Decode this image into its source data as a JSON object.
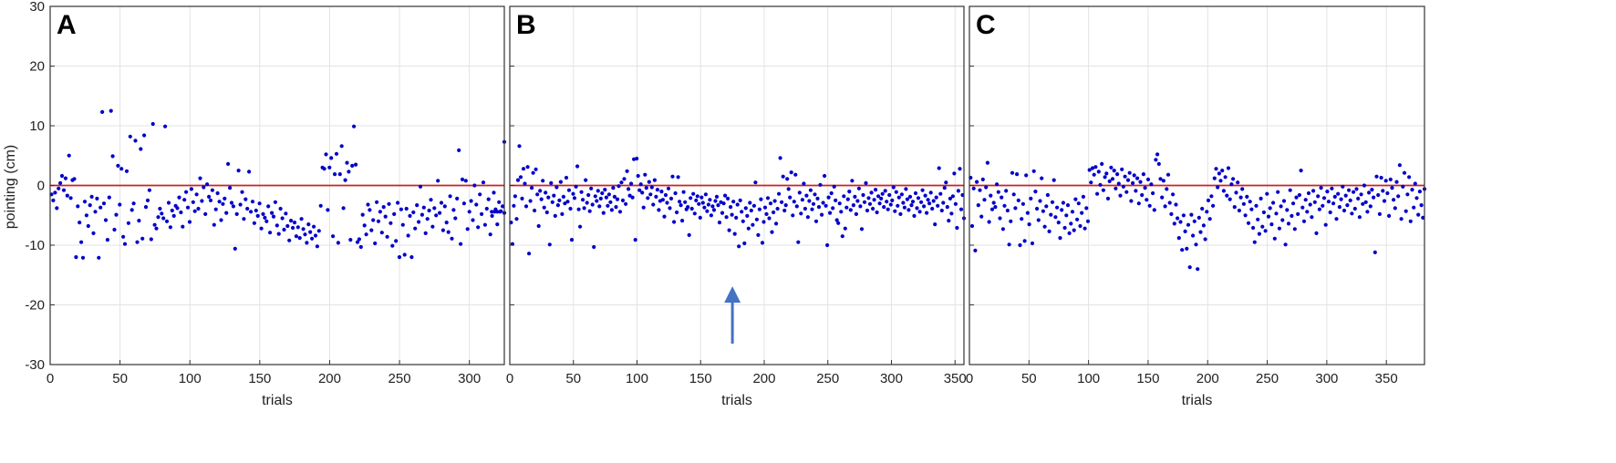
{
  "figure": {
    "shared_ylabel": "pointing (cm)",
    "ylim": [
      -30,
      30
    ],
    "y_ticks": [
      -30,
      -20,
      -10,
      0,
      10,
      20,
      30
    ],
    "reference_line_y": 0,
    "colors": {
      "points": "#0000cc",
      "reference_line": "#cc2222",
      "grid": "#e3e3e3",
      "frame": "#333333",
      "arrow": "#4472c4"
    }
  },
  "chart_data": [
    {
      "type": "scatter",
      "panel_label": "A",
      "xlabel": "trials",
      "ylabel": "pointing (cm)",
      "xlim": [
        0,
        325
      ],
      "ylim": [
        -30,
        30
      ],
      "x_ticks": [
        0,
        50,
        100,
        150,
        200,
        250,
        300
      ],
      "grid": true,
      "series": [
        {
          "y": [
            -1.5,
            -2.5,
            -1.2,
            -3.8,
            -0.5,
            0.4,
            1.6,
            -0.8,
            1.2,
            -1.7,
            5.0,
            -2.1,
            0.9,
            1.1,
            -12.0,
            -3.5,
            -6.2,
            -9.5,
            -12.1,
            -2.7,
            -5.0,
            -6.8,
            -3.3,
            -1.9,
            -8.0,
            -4.4,
            -2.2,
            -12.1,
            -3.7,
            12.3,
            -3.0,
            -5.8,
            -9.1,
            -2.0,
            12.5,
            4.9,
            -7.4,
            -4.9,
            3.3,
            -3.2,
            2.8,
            -8.6,
            -9.8,
            2.4,
            -6.3,
            8.2,
            -4.1,
            -3.0,
            7.5,
            -9.5,
            -5.9,
            6.1,
            -8.9,
            8.4,
            -3.6,
            -2.5,
            -0.8,
            -9.0,
            10.3,
            -6.6,
            -7.2,
            -5.3,
            -3.9,
            -4.7,
            -5.5,
            9.9,
            -6.0,
            -2.9,
            -7.0,
            -4.2,
            -5.1,
            -3.4,
            -3.8,
            -2.0,
            -4.5,
            -6.9,
            -2.4,
            -1.1,
            -3.7,
            -6.1,
            -0.6,
            -2.8,
            -4.3,
            -1.5,
            -3.9,
            1.2,
            -2.6,
            -0.3,
            -4.8,
            0.2,
            -1.9,
            -2.5,
            -0.8,
            -6.6,
            -4.0,
            -1.3,
            -2.7,
            -5.8,
            -3.1,
            -2.2,
            -4.6,
            3.6,
            -0.4,
            -2.9,
            -3.5,
            -10.6,
            -4.8,
            2.5,
            -3.2,
            -1.1,
            -5.6,
            -2.3,
            -3.9,
            2.3,
            -4.4,
            -2.7,
            -6.3,
            -4.2,
            -5.1,
            -3.0,
            -7.2,
            -4.8,
            -5.4,
            -6.0,
            -3.5,
            -7.9,
            -4.6,
            -5.2,
            -2.8,
            -6.7,
            -8.1,
            -3.9,
            -5.5,
            -7.4,
            -4.7,
            -6.8,
            -9.2,
            -5.9,
            -7.1,
            -6.2,
            -8.5,
            -7.0,
            -8.8,
            -5.6,
            -7.3,
            -8.2,
            -9.6,
            -6.5,
            -7.8,
            -8.9,
            -6.9,
            -8.4,
            -10.2,
            -7.6,
            -3.4,
            3.0,
            2.8,
            5.2,
            -4.1,
            3.0,
            4.6,
            -8.5,
            1.9,
            5.3,
            -9.6,
            1.9,
            6.6,
            -3.8,
            0.9,
            3.8,
            2.3,
            -9.1,
            3.3,
            9.9,
            3.5,
            -9.5,
            -9.0,
            -10.3,
            -4.9,
            -6.7,
            -8.2,
            -3.2,
            -4.1,
            -7.5,
            -5.8,
            -9.7,
            -2.8,
            -6.0,
            -4.4,
            -7.9,
            -3.6,
            -5.2,
            -8.6,
            -3.1,
            -6.3,
            -10.1,
            -4.8,
            -9.3,
            -2.9,
            -12.0,
            -4.0,
            -6.6,
            -11.6,
            -3.9,
            -8.4,
            -5.1,
            -12.0,
            -4.5,
            -7.2,
            -3.3,
            -6.1,
            -0.2,
            -4.9,
            -3.7,
            -8.0,
            -5.6,
            -4.2,
            -2.4,
            -6.9,
            -3.8,
            -5.0,
            0.8,
            -4.6,
            -2.9,
            -7.5,
            -3.5,
            -6.2,
            -7.8,
            -1.8,
            -8.9,
            -4.1,
            -5.5,
            -2.2,
            5.9,
            -9.8,
            1.0,
            -3.0,
            0.8,
            -7.3,
            -4.4,
            -2.6,
            -5.8,
            0.0,
            -3.2,
            -7.0,
            -1.5,
            -4.8,
            0.5,
            -6.6,
            -3.9,
            -2.3,
            -8.2,
            -5.1,
            -1.2,
            -4.0,
            -6.5,
            -2.8,
            -4.3,
            -3.5,
            -4.6
          ],
          "x_range": [
            1,
            325
          ],
          "extra_points": [
            [
              325,
              7.3
            ],
            [
              316,
              -4.4
            ],
            [
              318,
              -4.4
            ],
            [
              320,
              -4.4
            ],
            [
              322,
              -4.4
            ]
          ]
        }
      ]
    },
    {
      "type": "scatter",
      "panel_label": "B",
      "xlabel": "trials",
      "ylabel": "",
      "xlim": [
        0,
        357
      ],
      "ylim": [
        -30,
        30
      ],
      "x_ticks": [
        0,
        50,
        100,
        150,
        200,
        250,
        300,
        350
      ],
      "grid": true,
      "annotation": {
        "type": "arrow",
        "x": 175,
        "y_from": -26.5,
        "y_to": -17.5
      },
      "series": [
        {
          "y": [
            -6.2,
            -9.8,
            -3.4,
            -1.8,
            -5.6,
            0.9,
            6.6,
            1.4,
            -2.2,
            2.8,
            0.3,
            -3.5,
            3.1,
            -11.4,
            -2.6,
            -0.4,
            2.1,
            -4.2,
            2.7,
            -1.5,
            -6.8,
            -0.9,
            -2.3,
            0.8,
            -3.7,
            -1.2,
            -4.5,
            -2.0,
            -9.9,
            0.4,
            -2.8,
            -1.7,
            -5.1,
            -0.3,
            -3.3,
            -2.5,
            0.6,
            -4.8,
            -1.9,
            -3.0,
            1.3,
            -2.7,
            -0.8,
            -3.9,
            -9.1,
            -1.4,
            -2.1,
            -0.2,
            3.2,
            -4.0,
            -6.9,
            -1.1,
            -2.4,
            -3.8,
            0.9,
            -2.9,
            -1.6,
            -4.3,
            -0.5,
            -3.2,
            -10.3,
            -1.8,
            -2.6,
            -0.9,
            -3.5,
            -2.2,
            -1.3,
            -4.6,
            -0.7,
            -2.0,
            -3.4,
            -1.5,
            -2.8,
            -4.1,
            -0.4,
            -1.9,
            -3.6,
            -2.3,
            -0.1,
            -4.4,
            0.5,
            -2.5,
            1.1,
            -3.1,
            2.4,
            -0.6,
            -1.7,
            0.3,
            -2.0,
            4.4,
            -9.1,
            4.5,
            1.6,
            -0.8,
            0.2,
            -1.2,
            -3.7,
            1.8,
            -0.4,
            -2.1,
            0.6,
            -1.5,
            -0.3,
            -3.2,
            0.9,
            -1.9,
            -0.7,
            -4.1,
            -2.6,
            -1.0,
            -2.4,
            -5.2,
            -1.6,
            -2.9,
            -0.5,
            -3.8,
            -2.2,
            1.5,
            -6.1,
            -1.3,
            -4.5,
            1.4,
            -2.7,
            -3.3,
            -5.9,
            -1.1,
            -2.8,
            -4.0,
            -3.6,
            -8.3,
            -2.1,
            -3.9,
            -1.4,
            -4.7,
            -2.5,
            -1.8,
            -3.1,
            -5.4,
            -2.0,
            -2.9,
            -3.7,
            -1.5,
            -4.3,
            -3.2,
            -2.4,
            -5.0,
            -3.5,
            -4.1,
            -2.6,
            -1.9,
            -3.3,
            -6.2,
            -2.8,
            -4.6,
            -3.0,
            -1.7,
            -5.3,
            -2.2,
            -7.5,
            -3.6,
            -4.9,
            -2.7,
            -8.1,
            -5.4,
            -3.2,
            -10.2,
            -2.5,
            -4.4,
            -6.0,
            -9.7,
            -3.8,
            -5.1,
            -7.2,
            -2.9,
            -4.2,
            -6.6,
            -3.4,
            0.5,
            -5.7,
            -8.3,
            -4.0,
            -2.3,
            -9.6,
            -6.1,
            -3.7,
            -4.8,
            -2.1,
            -5.5,
            -3.0,
            -7.8,
            -4.5,
            -2.6,
            -6.4,
            -3.9,
            -1.4,
            4.6,
            -2.8,
            1.5,
            -4.2,
            -3.3,
            1.1,
            -0.6,
            -2.0,
            2.2,
            -5.0,
            -2.7,
            1.8,
            -3.5,
            -9.5,
            -1.2,
            -4.7,
            -2.4,
            0.3,
            -3.9,
            -1.7,
            -5.3,
            -2.6,
            -0.8,
            -4.0,
            -3.1,
            -1.5,
            -6.0,
            -2.2,
            -3.6,
            0.1,
            -4.9,
            -2.9,
            1.6,
            -3.4,
            -10.0,
            -2.0,
            -4.6,
            -1.3,
            -3.8,
            -0.2,
            -2.5,
            -5.8,
            -6.3,
            -3.0,
            -4.4,
            -8.5,
            -1.8,
            -7.2,
            -3.7,
            -2.3,
            -1.0,
            -4.1,
            0.8,
            -3.3,
            -1.9,
            -4.8,
            -2.6,
            -0.5,
            -3.5,
            -7.3,
            -1.6,
            -2.8,
            0.4,
            -4.2,
            -2.1,
            -3.1,
            -1.2,
            -3.9,
            -2.4,
            -0.7,
            -4.5,
            -1.8,
            -3.0,
            -2.2,
            -1.4,
            -3.6,
            -0.9,
            -2.7,
            -4.0,
            -1.6,
            -3.2,
            -2.5,
            -0.3,
            -4.3,
            -1.1,
            -3.4,
            -2.0,
            -4.8,
            -1.5,
            -2.9,
            -3.7,
            -0.6,
            -2.3,
            -4.1,
            -1.9,
            -3.3,
            -2.7,
            -5.1,
            -1.3,
            -3.8,
            -2.1,
            -4.4,
            -2.8,
            -0.8,
            -3.5,
            -1.7,
            -4.6,
            -2.4,
            -3.0,
            -1.2,
            -3.9,
            -2.6,
            -6.5,
            -2.0,
            -3.4,
            2.9,
            -1.4,
            -4.2,
            -2.9,
            -0.4,
            0.5,
            -3.6,
            -5.9,
            -2.2,
            -4.7,
            -1.8,
            2.0,
            -3.1,
            -7.1,
            -0.9,
            2.8,
            -4.0,
            -1.6,
            -5.5
          ]
        }
      ]
    },
    {
      "type": "scatter",
      "panel_label": "C",
      "xlabel": "trials",
      "ylabel": "",
      "xlim": [
        0,
        382
      ],
      "ylim": [
        -30,
        30
      ],
      "x_ticks": [
        0,
        50,
        100,
        150,
        200,
        250,
        300,
        350
      ],
      "grid": true,
      "series": [
        {
          "y": [
            1.3,
            -6.8,
            -0.5,
            -10.9,
            0.6,
            -3.3,
            -0.8,
            -5.2,
            1.0,
            -2.4,
            -0.3,
            3.8,
            -6.1,
            -1.7,
            -4.0,
            -2.9,
            -3.6,
            0.2,
            -1.1,
            -5.5,
            -2.0,
            -7.3,
            -3.4,
            -0.9,
            -4.2,
            -9.9,
            -6.0,
            2.1,
            -1.5,
            -3.8,
            1.9,
            -2.5,
            -10.0,
            -5.6,
            -3.1,
            -9.3,
            1.7,
            -4.6,
            -6.5,
            -2.2,
            -9.7,
            2.4,
            -1.0,
            -3.9,
            -5.8,
            -2.6,
            1.2,
            -4.3,
            -6.9,
            -3.5,
            -1.6,
            -7.7,
            -4.9,
            -2.8,
            0.9,
            -5.3,
            -3.7,
            -6.2,
            -8.8,
            -4.1,
            -2.9,
            -7.1,
            -5.0,
            -3.3,
            -8.0,
            -6.4,
            -4.4,
            -7.5,
            -2.3,
            -5.7,
            -3.0,
            -6.8,
            -4.6,
            -1.9,
            -7.2,
            -3.8,
            -6.0,
            2.6,
            0.5,
            2.9,
            1.8,
            3.1,
            -1.4,
            2.3,
            0.1,
            3.6,
            -0.8,
            1.4,
            2.0,
            -2.2,
            0.7,
            3.0,
            1.1,
            2.5,
            -0.5,
            1.9,
            0.3,
            -1.7,
            2.7,
            -0.2,
            1.5,
            -1.1,
            0.9,
            2.1,
            -2.6,
            0.4,
            1.7,
            -0.9,
            1.2,
            -3.0,
            0.6,
            -1.6,
            1.9,
            -0.4,
            -2.4,
            1.0,
            -3.4,
            0.2,
            -1.3,
            -4.1,
            4.3,
            5.2,
            3.6,
            1.1,
            -2.0,
            0.8,
            -3.5,
            -0.6,
            1.8,
            -2.9,
            -4.8,
            -1.5,
            -6.4,
            -3.2,
            -5.5,
            -8.8,
            -6.1,
            -10.8,
            -5.0,
            -7.7,
            -10.6,
            -6.6,
            -13.7,
            -4.9,
            -8.4,
            -6.0,
            -9.9,
            -14.0,
            -5.4,
            -7.8,
            -3.9,
            -6.7,
            -9.0,
            -4.4,
            -2.5,
            -5.6,
            -1.8,
            -3.4,
            1.2,
            2.8,
            -0.3,
            2.0,
            0.8,
            2.5,
            -0.9,
            1.4,
            -1.7,
            2.9,
            -2.3,
            0.2,
            1.1,
            -3.6,
            -1.2,
            0.5,
            -4.2,
            -2.0,
            -0.6,
            -3.1,
            -5.0,
            -1.9,
            -6.3,
            -2.7,
            -4.0,
            -7.1,
            -9.5,
            -3.4,
            -5.7,
            -8.1,
            -2.2,
            -6.9,
            -4.5,
            -7.6,
            -1.4,
            -5.2,
            -3.8,
            -6.5,
            -2.9,
            -8.9,
            -4.7,
            -1.1,
            -7.2,
            -3.5,
            -5.8,
            -2.6,
            -9.9,
            -4.1,
            -6.4,
            -0.8,
            -5.1,
            -3.0,
            -7.3,
            -2.0,
            -4.8,
            -1.6,
            2.5,
            -3.7,
            -6.0,
            -2.4,
            -4.4,
            -1.3,
            -3.2,
            -5.3,
            -0.9,
            -2.8,
            -8.0,
            -1.8,
            -4.0,
            -0.4,
            -3.4,
            -2.1,
            -6.6,
            -1.0,
            -2.7,
            -4.5,
            -0.5,
            -3.0,
            -1.9,
            -5.6,
            -1.4,
            -3.6,
            -2.3,
            -0.2,
            -4.2,
            -1.7,
            -3.3,
            -0.8,
            -2.5,
            -4.7,
            -1.1,
            -3.9,
            -0.6,
            -2.2,
            -5.3,
            -1.5,
            -3.1,
            0.0,
            -2.8,
            -4.4,
            -1.2,
            -3.5,
            -0.7,
            -2.0,
            -11.2,
            1.5,
            -1.6,
            -4.8,
            1.3,
            -0.9,
            -2.6,
            0.8,
            -1.3,
            -5.1,
            1.0,
            -0.4,
            -2.4,
            -3.8,
            0.6,
            -1.8,
            3.4,
            -5.6,
            -0.2,
            2.1,
            -4.3,
            -1.5,
            1.4,
            -6.0,
            -0.7,
            -3.7,
            0.3,
            -2.1,
            -4.9,
            -1.0,
            -3.3,
            -5.4,
            -0.6
          ]
        }
      ]
    }
  ]
}
